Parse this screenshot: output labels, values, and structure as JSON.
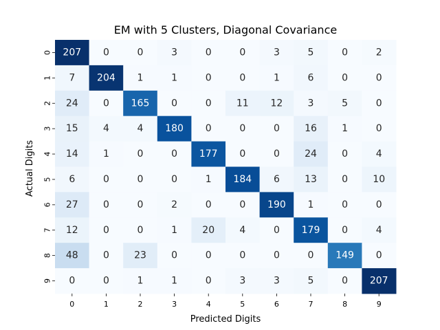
{
  "chart_data": {
    "type": "heatmap",
    "title": "EM with 5 Clusters, Diagonal Covariance",
    "xlabel": "Predicted Digits",
    "ylabel": "Actual Digits",
    "x_categories": [
      "0",
      "1",
      "2",
      "3",
      "4",
      "5",
      "6",
      "7",
      "8",
      "9"
    ],
    "y_categories": [
      "0",
      "1",
      "2",
      "3",
      "4",
      "5",
      "6",
      "7",
      "8",
      "9"
    ],
    "values": [
      [
        207,
        0,
        0,
        3,
        0,
        0,
        3,
        5,
        0,
        2
      ],
      [
        7,
        204,
        1,
        1,
        0,
        0,
        1,
        6,
        0,
        0
      ],
      [
        24,
        0,
        165,
        0,
        0,
        11,
        12,
        3,
        5,
        0
      ],
      [
        15,
        4,
        4,
        180,
        0,
        0,
        0,
        16,
        1,
        0
      ],
      [
        14,
        1,
        0,
        0,
        177,
        0,
        0,
        24,
        0,
        4
      ],
      [
        6,
        0,
        0,
        0,
        1,
        184,
        6,
        13,
        0,
        10
      ],
      [
        27,
        0,
        0,
        2,
        0,
        0,
        190,
        1,
        0,
        0
      ],
      [
        12,
        0,
        0,
        1,
        20,
        4,
        0,
        179,
        0,
        4
      ],
      [
        48,
        0,
        23,
        0,
        0,
        0,
        0,
        0,
        149,
        0
      ],
      [
        0,
        0,
        1,
        1,
        0,
        3,
        3,
        5,
        0,
        207
      ]
    ],
    "colormap": "Blues",
    "annotate": true,
    "colorbar": false,
    "grid": false
  }
}
